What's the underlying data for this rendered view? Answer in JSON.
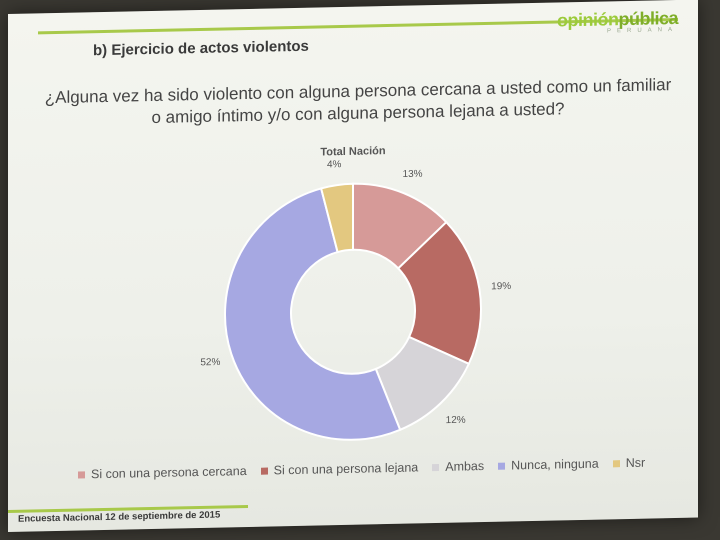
{
  "header": {
    "section_title": "b) Ejercicio de actos violentos",
    "logo_part1": "opinión",
    "logo_part2": "pública",
    "logo_sub": "PERUANA",
    "question": "¿Alguna vez ha sido violento con alguna persona cercana a usted como un familiar o amigo íntimo y/o con alguna persona lejana a usted?"
  },
  "footer": {
    "text": "Encuesta Nacional  12 de septiembre de 2015"
  },
  "chart_data": {
    "type": "pie",
    "subtype": "donut",
    "title": "Total Nación",
    "categories": [
      "Si con una persona cercana",
      "Si con una persona lejana",
      "Ambas",
      "Nunca, ninguna",
      "Nsr"
    ],
    "values": [
      13,
      19,
      12,
      52,
      4
    ],
    "labels": [
      "13%",
      "19%",
      "12%",
      "52%",
      "4%"
    ],
    "colors": [
      "#d69a98",
      "#b86a63",
      "#d6d4d8",
      "#a6a8e2",
      "#e3c880"
    ],
    "legend_position": "bottom"
  }
}
